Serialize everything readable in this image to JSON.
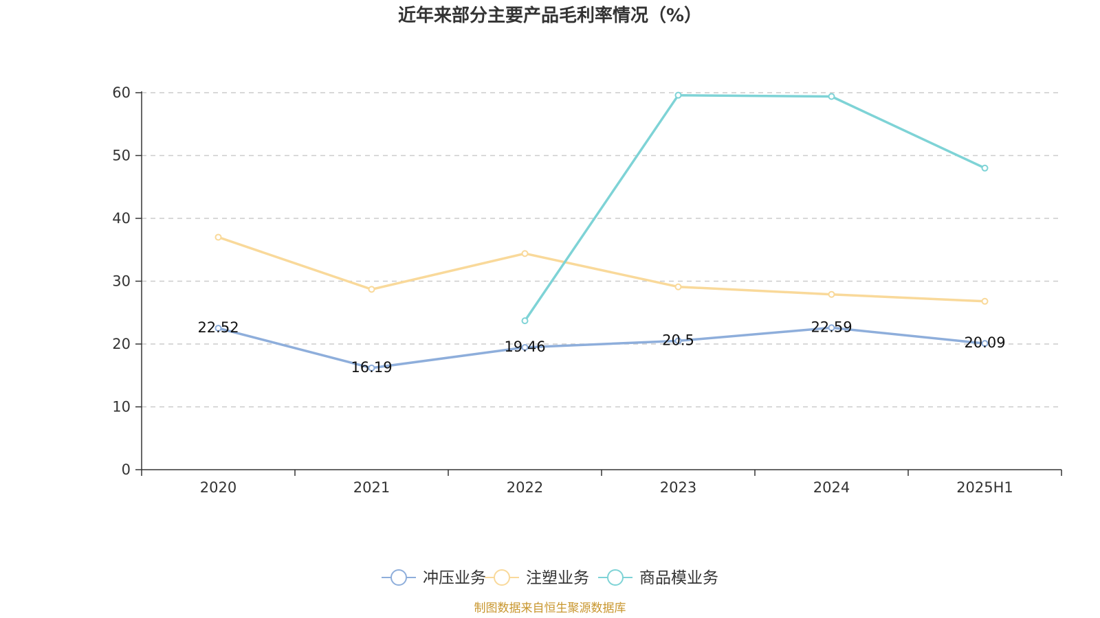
{
  "title": "近年来部分主要产品毛利率情况（%）",
  "source": "制图数据来自恒生聚源数据库",
  "colors": {
    "title": "#333333",
    "axis": "#333333",
    "grid": "#cccccc",
    "source": "#c8962e"
  },
  "chart_data": {
    "type": "line",
    "title": "近年来部分主要产品毛利率情况（%）",
    "xlabel": "",
    "ylabel": "",
    "categories": [
      "2020",
      "2021",
      "2022",
      "2023",
      "2024",
      "2025H1"
    ],
    "ylim": [
      0,
      60
    ],
    "yticks": [
      0,
      10,
      20,
      30,
      40,
      50,
      60
    ],
    "grid": true,
    "legend_position": "bottom",
    "series": [
      {
        "name": "冲压业务",
        "color": "#8eaedb",
        "values": [
          22.52,
          16.19,
          19.46,
          20.5,
          22.59,
          20.09
        ],
        "labels": [
          "22.52",
          "16.19",
          "19.46",
          "20.5",
          "22.59",
          "20.09"
        ]
      },
      {
        "name": "注塑业务",
        "color": "#f9d99a",
        "values": [
          37.0,
          28.7,
          34.4,
          29.1,
          27.9,
          26.8
        ],
        "labels": null
      },
      {
        "name": "商品模业务",
        "color": "#7ed3d6",
        "values": [
          null,
          null,
          23.7,
          59.6,
          59.4,
          48.0
        ],
        "labels": null
      }
    ]
  }
}
